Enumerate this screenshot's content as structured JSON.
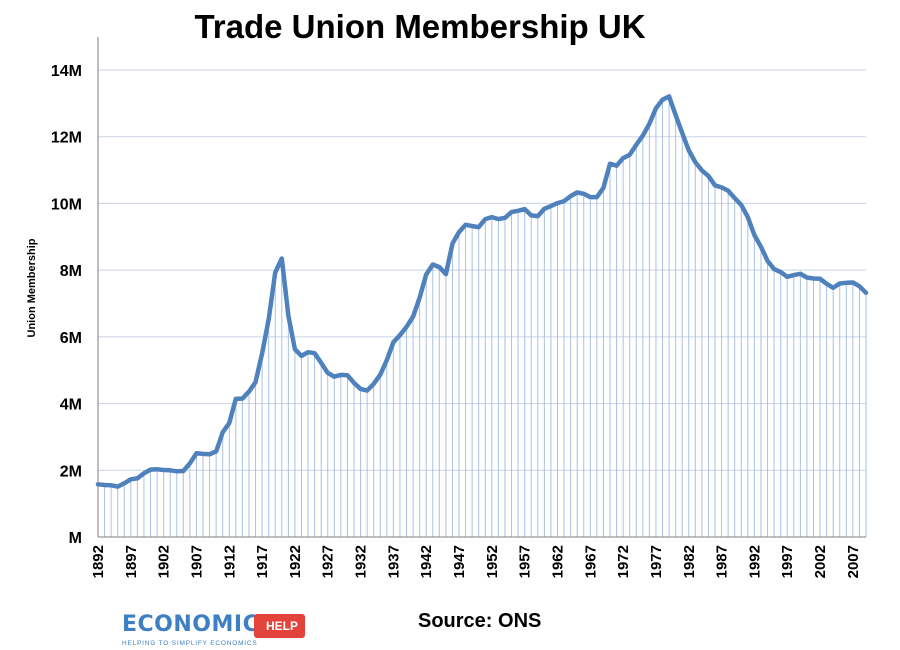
{
  "chart_data": {
    "type": "line",
    "title": "Trade Union Membership UK",
    "ylabel": "Union Membership",
    "xlabel": "",
    "source": "Source: ONS",
    "ylim": [
      0,
      14
    ],
    "yticks": [
      0,
      2,
      4,
      6,
      8,
      10,
      12,
      14
    ],
    "ytick_labels": [
      "M",
      "2M",
      "4M",
      "6M",
      "8M",
      "10M",
      "12M",
      "14M"
    ],
    "xlim": [
      1892,
      2009
    ],
    "xtick_labels": [
      "1892",
      "1897",
      "1902",
      "1907",
      "1912",
      "1917",
      "1922",
      "1927",
      "1932",
      "1937",
      "1942",
      "1947",
      "1952",
      "1957",
      "1962",
      "1967",
      "1972",
      "1977",
      "1982",
      "1987",
      "1992",
      "1997",
      "2002",
      "2007"
    ],
    "grid": "horizontal",
    "series_color": "#4f81bd",
    "drop_line_color": "#a9c1e0",
    "series": [
      {
        "name": "",
        "x": [
          1892,
          1893,
          1894,
          1895,
          1896,
          1897,
          1898,
          1899,
          1900,
          1901,
          1902,
          1903,
          1904,
          1905,
          1906,
          1907,
          1908,
          1909,
          1910,
          1911,
          1912,
          1913,
          1914,
          1915,
          1916,
          1917,
          1918,
          1919,
          1920,
          1921,
          1922,
          1923,
          1924,
          1925,
          1926,
          1927,
          1928,
          1929,
          1930,
          1931,
          1932,
          1933,
          1934,
          1935,
          1936,
          1937,
          1938,
          1939,
          1940,
          1941,
          1942,
          1943,
          1944,
          1945,
          1946,
          1947,
          1948,
          1949,
          1950,
          1951,
          1952,
          1953,
          1954,
          1955,
          1956,
          1957,
          1958,
          1959,
          1960,
          1961,
          1962,
          1963,
          1964,
          1965,
          1966,
          1967,
          1968,
          1969,
          1970,
          1971,
          1972,
          1973,
          1974,
          1975,
          1976,
          1977,
          1978,
          1979,
          1980,
          1981,
          1982,
          1983,
          1984,
          1985,
          1986,
          1987,
          1988,
          1989,
          1990,
          1991,
          1992,
          1993,
          1994,
          1995,
          1996,
          1997,
          1998,
          1999,
          2000,
          2001,
          2002,
          2003,
          2004,
          2005,
          2006,
          2007,
          2008,
          2009
        ],
        "values": [
          1.58,
          1.56,
          1.55,
          1.51,
          1.61,
          1.73,
          1.76,
          1.91,
          2.02,
          2.03,
          2.01,
          2.0,
          1.97,
          1.98,
          2.21,
          2.51,
          2.49,
          2.48,
          2.57,
          3.14,
          3.42,
          4.14,
          4.15,
          4.36,
          4.64,
          5.5,
          6.53,
          7.93,
          8.35,
          6.63,
          5.63,
          5.43,
          5.54,
          5.51,
          5.22,
          4.92,
          4.81,
          4.86,
          4.85,
          4.62,
          4.44,
          4.39,
          4.59,
          4.87,
          5.3,
          5.84,
          6.05,
          6.3,
          6.61,
          7.17,
          7.87,
          8.17,
          8.09,
          7.88,
          8.8,
          9.14,
          9.36,
          9.32,
          9.29,
          9.53,
          9.59,
          9.53,
          9.57,
          9.74,
          9.78,
          9.83,
          9.64,
          9.62,
          9.84,
          9.92,
          10.01,
          10.07,
          10.22,
          10.33,
          10.29,
          10.19,
          10.19,
          10.47,
          11.19,
          11.13,
          11.36,
          11.46,
          11.76,
          12.03,
          12.39,
          12.85,
          13.11,
          13.21,
          12.65,
          12.11,
          11.59,
          11.24,
          10.99,
          10.82,
          10.54,
          10.48,
          10.38,
          10.16,
          9.95,
          9.59,
          9.05,
          8.7,
          8.28,
          8.03,
          7.94,
          7.8,
          7.85,
          7.89,
          7.78,
          7.75,
          7.74,
          7.59,
          7.47,
          7.6,
          7.62,
          7.63,
          7.52,
          7.32
        ]
      }
    ]
  },
  "logo": {
    "word": "ECONOMICS",
    "tag": "HELP",
    "tagline": "HELPING TO SIMPLIFY ECONOMICS"
  }
}
